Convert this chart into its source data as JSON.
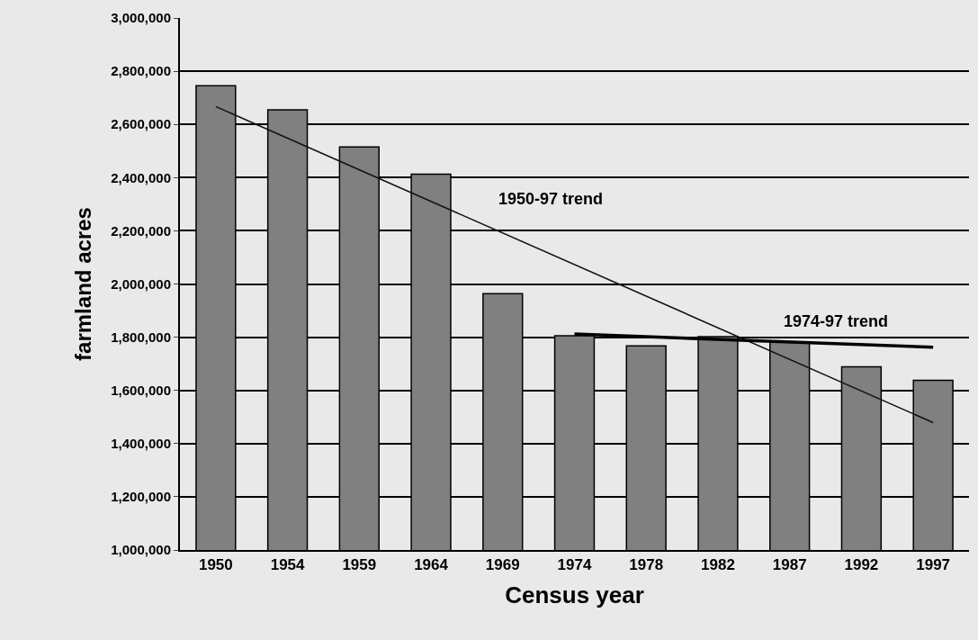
{
  "chart_data": {
    "type": "bar",
    "xlabel": "Census year",
    "ylabel": "farmland acres",
    "categories": [
      "1950",
      "1954",
      "1959",
      "1964",
      "1969",
      "1974",
      "1978",
      "1982",
      "1987",
      "1992",
      "1997"
    ],
    "series": [
      {
        "color": "#808080",
        "values": [
          2745000,
          2655000,
          2515000,
          2413000,
          1964000,
          1805000,
          1767000,
          1802000,
          1781000,
          1689000,
          1638000
        ]
      },
      {
        "type": "line",
        "color": "#111111",
        "values": [
          2667000,
          null,
          null,
          null,
          null,
          null,
          null,
          null,
          null,
          null,
          1479000
        ]
      },
      {
        "type": "line",
        "color": "#000000",
        "values": [
          null,
          null,
          null,
          null,
          null,
          1812000,
          null,
          null,
          null,
          null,
          1762000
        ]
      }
    ],
    "annotations": [
      "1950-97 trend",
      "1974-97 trend"
    ],
    "ylim": [
      1000000,
      3000000
    ],
    "yticks": [
      {
        "value": 1000000,
        "label": "1,000,000"
      },
      {
        "value": 1200000,
        "label": "1,200,000"
      },
      {
        "value": 1400000,
        "label": "1,400,000"
      },
      {
        "value": 1600000,
        "label": "1,600,000"
      },
      {
        "value": 1800000,
        "label": "1,800,000"
      },
      {
        "value": 2000000,
        "label": "2,000,000"
      },
      {
        "value": 2200000,
        "label": "2,200,000"
      },
      {
        "value": 2400000,
        "label": "2,400,000"
      },
      {
        "value": 2600000,
        "label": "2,600,000"
      },
      {
        "value": 2800000,
        "label": "2,800,000"
      },
      {
        "value": 3000000,
        "label": "3,000,000"
      }
    ],
    "grid": "y"
  }
}
